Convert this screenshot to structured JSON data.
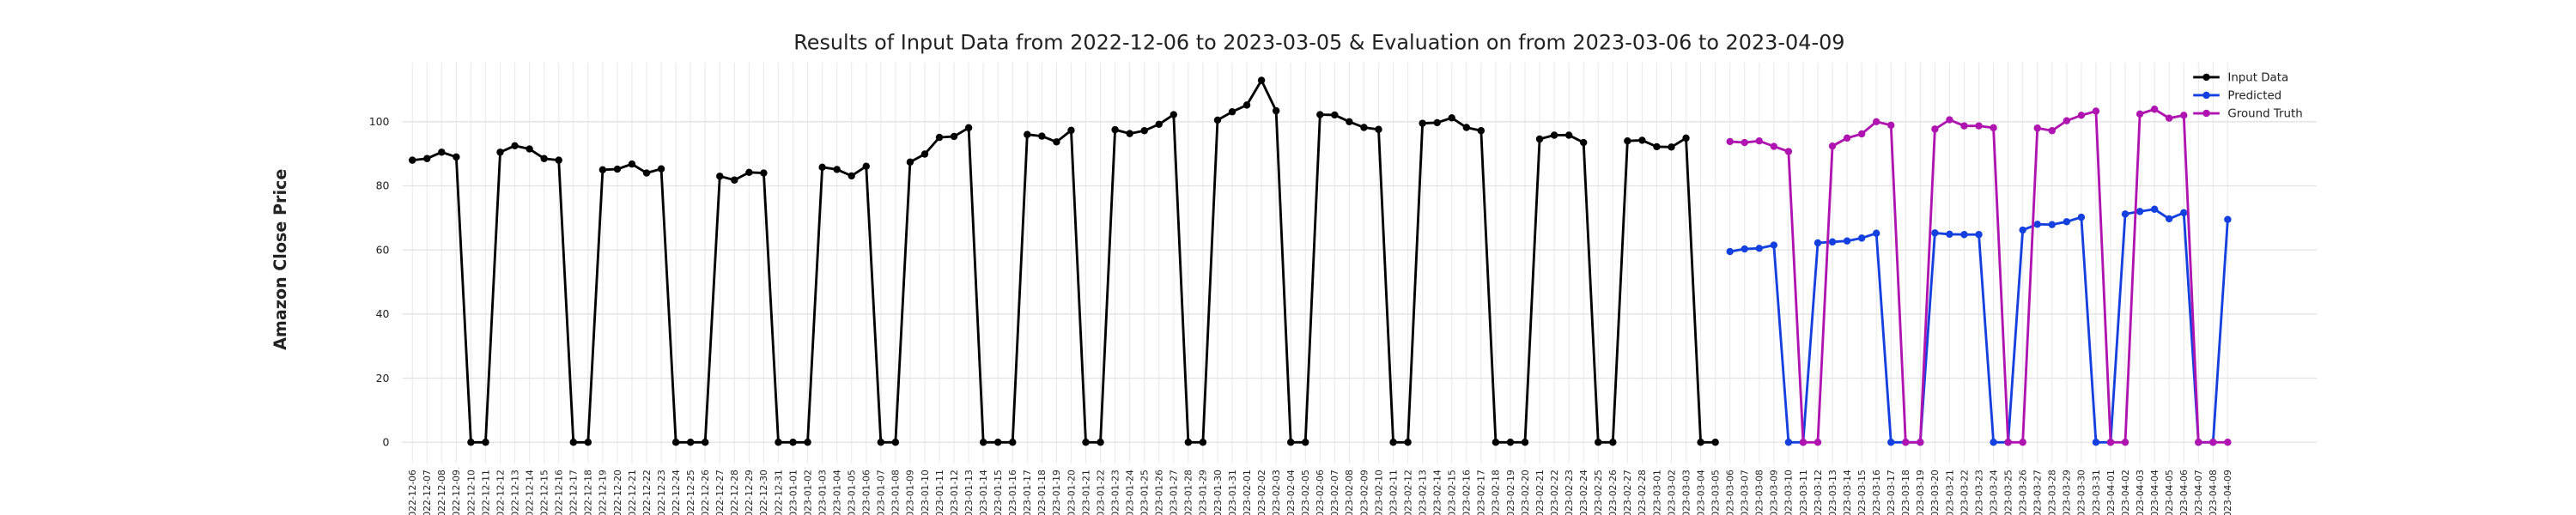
{
  "chart_data": {
    "type": "line",
    "title": "Results of Input Data from 2022-12-06 to 2023-03-05 & Evaluation on from 2023-03-06 to 2023-04-09",
    "y_label": "Amazon Close Price",
    "categories": [
      "2022-12-06",
      "2022-12-07",
      "2022-12-08",
      "2022-12-09",
      "2022-12-10",
      "2022-12-11",
      "2022-12-12",
      "2022-12-13",
      "2022-12-14",
      "2022-12-15",
      "2022-12-16",
      "2022-12-17",
      "2022-12-18",
      "2022-12-19",
      "2022-12-20",
      "2022-12-21",
      "2022-12-22",
      "2022-12-23",
      "2022-12-24",
      "2022-12-25",
      "2022-12-26",
      "2022-12-27",
      "2022-12-28",
      "2022-12-29",
      "2022-12-30",
      "2022-12-31",
      "2023-01-01",
      "2023-01-02",
      "2023-01-03",
      "2023-01-04",
      "2023-01-05",
      "2023-01-06",
      "2023-01-07",
      "2023-01-08",
      "2023-01-09",
      "2023-01-10",
      "2023-01-11",
      "2023-01-12",
      "2023-01-13",
      "2023-01-14",
      "2023-01-15",
      "2023-01-16",
      "2023-01-17",
      "2023-01-18",
      "2023-01-19",
      "2023-01-20",
      "2023-01-21",
      "2023-01-22",
      "2023-01-23",
      "2023-01-24",
      "2023-01-25",
      "2023-01-26",
      "2023-01-27",
      "2023-01-28",
      "2023-01-29",
      "2023-01-30",
      "2023-01-31",
      "2023-02-01",
      "2023-02-02",
      "2023-02-03",
      "2023-02-04",
      "2023-02-05",
      "2023-02-06",
      "2023-02-07",
      "2023-02-08",
      "2023-02-09",
      "2023-02-10",
      "2023-02-11",
      "2023-02-12",
      "2023-02-13",
      "2023-02-14",
      "2023-02-15",
      "2023-02-16",
      "2023-02-17",
      "2023-02-18",
      "2023-02-19",
      "2023-02-20",
      "2023-02-21",
      "2023-02-22",
      "2023-02-23",
      "2023-02-24",
      "2023-02-25",
      "2023-02-26",
      "2023-02-27",
      "2023-02-28",
      "2023-03-01",
      "2023-03-02",
      "2023-03-03",
      "2023-03-04",
      "2023-03-05",
      "2023-03-06",
      "2023-03-07",
      "2023-03-08",
      "2023-03-09",
      "2023-03-10",
      "2023-03-11",
      "2023-03-12",
      "2023-03-13",
      "2023-03-14",
      "2023-03-15",
      "2023-03-16",
      "2023-03-17",
      "2023-03-18",
      "2023-03-19",
      "2023-03-20",
      "2023-03-21",
      "2023-03-22",
      "2023-03-23",
      "2023-03-24",
      "2023-03-25",
      "2023-03-26",
      "2023-03-27",
      "2023-03-28",
      "2023-03-29",
      "2023-03-30",
      "2023-03-31",
      "2023-04-01",
      "2023-04-02",
      "2023-04-03",
      "2023-04-04",
      "2023-04-05",
      "2023-04-06",
      "2023-04-07",
      "2023-04-08",
      "2023-04-09"
    ],
    "series": [
      {
        "name": "Input Data",
        "color": "#000000",
        "values": [
          88,
          88.5,
          90.5,
          89,
          0,
          0,
          90.5,
          92.5,
          91.5,
          88.5,
          88,
          0,
          0,
          85,
          85.2,
          86.8,
          84,
          85.3,
          0,
          0,
          0,
          83,
          81.8,
          84.2,
          84,
          0,
          0,
          0,
          85.8,
          85.1,
          83.1,
          86.1,
          0,
          0,
          87.4,
          89.9,
          95.1,
          95.4,
          98.1,
          0,
          0,
          0,
          96,
          95.5,
          93.7,
          97.3,
          0,
          0,
          97.5,
          96.3,
          97.2,
          99.2,
          102.2,
          0,
          0,
          100.5,
          103.1,
          105.2,
          112.9,
          103.4,
          0,
          0,
          102.2,
          102.1,
          100,
          98.2,
          97.6,
          0,
          0,
          99.5,
          99.7,
          101.2,
          98.2,
          97.2,
          0,
          0,
          0,
          94.6,
          95.8,
          95.8,
          93.5,
          0,
          0,
          94,
          94.2,
          92.2,
          92.1,
          94.9,
          0,
          0,
          null,
          null,
          null,
          null,
          null,
          null,
          null,
          null,
          null,
          null,
          null,
          null,
          null,
          null,
          null,
          null,
          null,
          null,
          null,
          null,
          null,
          null,
          null,
          null,
          null,
          null,
          null,
          null,
          null,
          null,
          null,
          null,
          null,
          null,
          null
        ]
      },
      {
        "name": "Predicted",
        "color": "#1440e0",
        "values": [
          null,
          null,
          null,
          null,
          null,
          null,
          null,
          null,
          null,
          null,
          null,
          null,
          null,
          null,
          null,
          null,
          null,
          null,
          null,
          null,
          null,
          null,
          null,
          null,
          null,
          null,
          null,
          null,
          null,
          null,
          null,
          null,
          null,
          null,
          null,
          null,
          null,
          null,
          null,
          null,
          null,
          null,
          null,
          null,
          null,
          null,
          null,
          null,
          null,
          null,
          null,
          null,
          null,
          null,
          null,
          null,
          null,
          null,
          null,
          null,
          null,
          null,
          null,
          null,
          null,
          null,
          null,
          null,
          null,
          null,
          null,
          null,
          null,
          null,
          null,
          null,
          null,
          null,
          null,
          null,
          null,
          null,
          null,
          null,
          null,
          null,
          null,
          null,
          null,
          null,
          59.5,
          60.3,
          60.5,
          61.5,
          0,
          0,
          62.2,
          62.5,
          62.8,
          63.7,
          65.2,
          0,
          0,
          0,
          65.3,
          64.9,
          64.8,
          64.8,
          0,
          0,
          66.2,
          68,
          67.9,
          68.8,
          70.2,
          0,
          0,
          71.2,
          72,
          72.7,
          69.7,
          71.6,
          0,
          0,
          69.5
        ]
      },
      {
        "name": "Ground Truth",
        "color": "#b014b0",
        "values": [
          null,
          null,
          null,
          null,
          null,
          null,
          null,
          null,
          null,
          null,
          null,
          null,
          null,
          null,
          null,
          null,
          null,
          null,
          null,
          null,
          null,
          null,
          null,
          null,
          null,
          null,
          null,
          null,
          null,
          null,
          null,
          null,
          null,
          null,
          null,
          null,
          null,
          null,
          null,
          null,
          null,
          null,
          null,
          null,
          null,
          null,
          null,
          null,
          null,
          null,
          null,
          null,
          null,
          null,
          null,
          null,
          null,
          null,
          null,
          null,
          null,
          null,
          null,
          null,
          null,
          null,
          null,
          null,
          null,
          null,
          null,
          null,
          null,
          null,
          null,
          null,
          null,
          null,
          null,
          null,
          null,
          null,
          null,
          null,
          null,
          null,
          null,
          null,
          null,
          null,
          93.8,
          93.5,
          94,
          92.3,
          90.7,
          0,
          0,
          92.4,
          94.9,
          96.2,
          100,
          98.9,
          0,
          0,
          97.7,
          100.6,
          98.7,
          98.7,
          98.1,
          0,
          0,
          98,
          97.2,
          100.3,
          102,
          103.3,
          0,
          0,
          102.4,
          103.9,
          101.1,
          102,
          0,
          0,
          0
        ]
      }
    ],
    "ylim": [
      -6.5,
      118.5
    ],
    "yticks": [
      0,
      20,
      40,
      60,
      80,
      100
    ],
    "grid": true,
    "legend": "upper right"
  }
}
